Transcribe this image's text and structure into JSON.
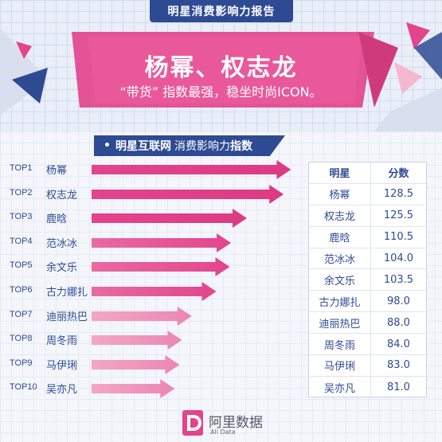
{
  "header": {
    "report_tab": "明星消费影响力报告",
    "title": "杨幂、权志龙",
    "subtitle": "“带货” 指数最强，稳坐时尚ICON。"
  },
  "section": {
    "label_brand": "明星互联网",
    "label_mid": "消费影响力",
    "label_bold": "指数"
  },
  "table": {
    "col_star": "明星",
    "col_score": "分数"
  },
  "footer": {
    "logo_name": "阿里数据",
    "logo_sub": "Ali Data"
  },
  "colors": {
    "navy": "#2e4a93",
    "pink": "#e2458c",
    "light_pink": "#f4b8cf"
  },
  "chart_data": {
    "type": "bar",
    "title": "明星互联网 消费影响力指数",
    "ranks": [
      "TOP1",
      "TOP2",
      "TOP3",
      "TOP4",
      "TOP5",
      "TOP6",
      "TOP7",
      "TOP8",
      "TOP9",
      "TOP10"
    ],
    "categories": [
      "杨幂",
      "权志龙",
      "鹿晗",
      "范冰冰",
      "余文乐",
      "古力娜扎",
      "迪丽热巴",
      "周冬雨",
      "马伊琍",
      "吴亦凡"
    ],
    "values_label": [
      "128.5",
      "125.5",
      "110.5",
      "104.0",
      "103.5",
      "98.0",
      "88.0",
      "84.0",
      "83.0",
      "81.0"
    ],
    "values": [
      128.5,
      125.5,
      110.5,
      104.0,
      103.5,
      98.0,
      88.0,
      84.0,
      83.0,
      81.0
    ],
    "xlim": [
      0,
      130
    ]
  }
}
